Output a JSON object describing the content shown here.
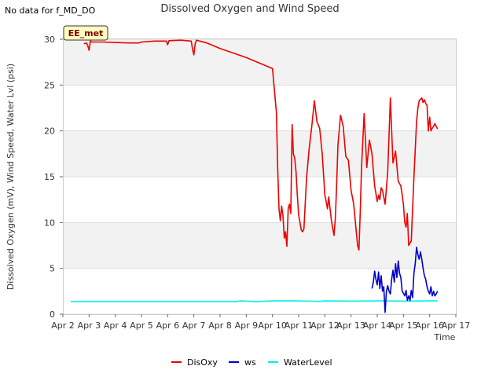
{
  "header": {
    "no_data_note": "No data for f_MD_DO"
  },
  "badge": {
    "label": "EE_met"
  },
  "colors": {
    "disoxy": "#ee0000",
    "ws": "#0000cc",
    "water": "#00eeee",
    "band": "#f2f2f2",
    "grid": "#dddddd",
    "badge_bg": "#ffffc0"
  },
  "chart_data": {
    "type": "line",
    "title": "Dissolved Oxygen and Wind Speed",
    "xlabel": "Time",
    "ylabel": "Dissolved Oxygen (mV), Wind Speed, Water Lvl (psi)",
    "xlim": [
      0,
      15
    ],
    "ylim": [
      0,
      30
    ],
    "x_ticks": [
      0,
      1,
      2,
      3,
      4,
      5,
      6,
      7,
      8,
      9,
      10,
      11,
      12,
      13,
      14,
      15
    ],
    "x_tick_labels": [
      "Apr 2",
      "Apr 3",
      "Apr 4",
      "Apr 5",
      "Apr 6",
      "Apr 7",
      "Apr 8",
      "Apr 9",
      "Apr 10",
      "Apr 11",
      "Apr 12",
      "Apr 13",
      "Apr 14",
      "Apr 15",
      "Apr 16",
      "Apr 17"
    ],
    "y_ticks": [
      0,
      5,
      10,
      15,
      20,
      25,
      30
    ],
    "legend_position": "bottom-center",
    "series": [
      {
        "name": "DisOxy",
        "x": [
          0.8,
          0.9,
          0.95,
          1.0,
          1.05,
          1.1,
          1.5,
          2.0,
          2.5,
          2.9,
          3.0,
          3.5,
          3.95,
          4.0,
          4.05,
          4.5,
          4.9,
          4.95,
          5.0,
          5.05,
          5.1,
          5.5,
          6.0,
          6.5,
          7.0,
          7.5,
          8.0,
          8.15,
          8.2,
          8.25,
          8.3,
          8.35,
          8.4,
          8.45,
          8.5,
          8.55,
          8.6,
          8.65,
          8.7,
          8.75,
          8.8,
          8.85,
          8.9,
          8.95,
          9.0,
          9.05,
          9.1,
          9.15,
          9.2,
          9.3,
          9.4,
          9.5,
          9.6,
          9.7,
          9.8,
          9.9,
          10.0,
          10.05,
          10.1,
          10.15,
          10.2,
          10.25,
          10.3,
          10.35,
          10.4,
          10.45,
          10.5,
          10.6,
          10.7,
          10.8,
          10.9,
          11.0,
          11.05,
          11.1,
          11.15,
          11.2,
          11.25,
          11.3,
          11.35,
          11.4,
          11.5,
          11.6,
          11.7,
          11.8,
          11.9,
          12.0,
          12.05,
          12.1,
          12.15,
          12.2,
          12.3,
          12.4,
          12.5,
          12.6,
          12.7,
          12.8,
          12.9,
          12.95,
          13.0,
          13.05,
          13.1,
          13.15,
          13.2,
          13.3,
          13.4,
          13.5,
          13.55,
          13.6,
          13.7,
          13.75,
          13.8,
          13.85,
          13.9,
          13.95,
          14.0,
          14.05,
          14.1,
          14.15,
          14.2,
          14.3
        ],
        "values": [
          29.5,
          29.6,
          29.3,
          28.8,
          29.8,
          29.7,
          29.7,
          29.65,
          29.6,
          29.6,
          29.7,
          29.8,
          29.8,
          29.4,
          29.85,
          29.9,
          29.8,
          28.9,
          28.3,
          29.5,
          29.9,
          29.6,
          29.0,
          28.5,
          28.0,
          27.4,
          26.8,
          22.0,
          16.0,
          11.5,
          10.2,
          11.8,
          10.8,
          8.3,
          9.0,
          7.4,
          11.5,
          12.0,
          11.0,
          20.7,
          17.5,
          17.0,
          15.5,
          13.0,
          10.8,
          10.0,
          9.2,
          9.0,
          9.3,
          14.8,
          18.0,
          20.5,
          23.3,
          21.0,
          20.3,
          17.5,
          13.0,
          12.3,
          11.5,
          12.8,
          11.5,
          10.2,
          9.4,
          8.6,
          10.5,
          14.0,
          18.5,
          21.7,
          20.5,
          17.2,
          16.8,
          13.5,
          12.8,
          12.0,
          10.5,
          9.0,
          7.5,
          7.0,
          11.0,
          16.0,
          21.9,
          16.0,
          19.0,
          17.5,
          14.0,
          12.3,
          13.0,
          12.5,
          13.8,
          13.5,
          12.0,
          15.5,
          23.6,
          16.5,
          17.8,
          14.5,
          14.0,
          13.0,
          12.0,
          10.0,
          9.5,
          11.0,
          7.5,
          8.0,
          15.0,
          21.0,
          22.5,
          23.3,
          23.6,
          23.1,
          23.4,
          23.0,
          22.8,
          20.0,
          21.5,
          20.0,
          20.3,
          20.5,
          20.8,
          20.2
        ]
      },
      {
        "name": "ws",
        "x": [
          11.8,
          11.85,
          11.9,
          11.95,
          12.0,
          12.05,
          12.1,
          12.15,
          12.2,
          12.25,
          12.3,
          12.35,
          12.4,
          12.45,
          12.5,
          12.55,
          12.6,
          12.65,
          12.7,
          12.75,
          12.8,
          12.85,
          12.9,
          12.95,
          13.0,
          13.05,
          13.1,
          13.15,
          13.2,
          13.25,
          13.3,
          13.35,
          13.4,
          13.45,
          13.5,
          13.55,
          13.6,
          13.65,
          13.7,
          13.75,
          13.8,
          13.85,
          13.9,
          13.95,
          14.0,
          14.05,
          14.1,
          14.15,
          14.2,
          14.25,
          14.3
        ],
        "values": [
          2.8,
          3.5,
          4.7,
          3.8,
          3.2,
          4.6,
          2.8,
          4.2,
          2.5,
          3.0,
          0.2,
          2.5,
          3.1,
          2.5,
          2.2,
          3.8,
          4.8,
          3.5,
          5.5,
          4.0,
          5.8,
          4.5,
          4.0,
          2.5,
          2.3,
          2.0,
          2.6,
          1.5,
          2.0,
          1.5,
          2.6,
          1.8,
          4.5,
          5.5,
          7.3,
          6.5,
          6.0,
          6.8,
          6.0,
          5.0,
          4.2,
          3.8,
          3.0,
          2.5,
          2.2,
          3.0,
          2.0,
          2.5,
          2.0,
          2.2,
          2.5
        ]
      },
      {
        "name": "WaterLevel",
        "x": [
          0.3,
          1.0,
          2.0,
          3.0,
          4.0,
          5.0,
          6.0,
          6.6,
          6.8,
          7.0,
          7.4,
          8.0,
          9.0,
          9.8,
          10.0,
          11.0,
          12.0,
          13.0,
          14.0,
          14.3
        ],
        "values": [
          1.38,
          1.38,
          1.38,
          1.38,
          1.38,
          1.38,
          1.38,
          1.38,
          1.45,
          1.42,
          1.38,
          1.45,
          1.45,
          1.4,
          1.45,
          1.42,
          1.45,
          1.42,
          1.45,
          1.45
        ]
      }
    ]
  }
}
